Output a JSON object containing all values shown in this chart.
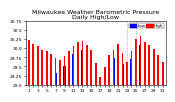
{
  "title": "Milwaukee Weather Barometric Pressure",
  "subtitle": "Daily High/Low",
  "bar_color_high": "#FF0000",
  "bar_color_low": "#0000FF",
  "background_color": "#FFFFFF",
  "ylim": [
    29.0,
    30.75
  ],
  "yticks": [
    29.0,
    29.25,
    29.5,
    29.75,
    30.0,
    30.25,
    30.5,
    30.75
  ],
  "ytick_labels": [
    "29.0",
    "29.25",
    "29.5",
    "29.75",
    "30.0",
    "30.25",
    "30.5",
    "30.75"
  ],
  "x_labels": [
    "1",
    "",
    "3",
    "",
    "5",
    "",
    "7",
    "",
    "9",
    "",
    "11",
    "",
    "13",
    "",
    "15",
    "",
    "17",
    "",
    "19",
    "",
    "21",
    "",
    "23",
    "",
    "25",
    "",
    "27",
    "",
    "29",
    "",
    "31"
  ],
  "highs": [
    30.22,
    30.1,
    30.05,
    29.95,
    29.92,
    29.85,
    29.72,
    29.68,
    29.78,
    29.92,
    30.05,
    30.18,
    30.2,
    30.08,
    29.95,
    29.6,
    29.22,
    29.48,
    29.82,
    29.96,
    30.12,
    29.88,
    29.62,
    29.92,
    30.26,
    30.32,
    30.18,
    30.08,
    29.98,
    29.82,
    29.62
  ],
  "lows": [
    29.95,
    29.82,
    29.74,
    29.68,
    29.6,
    29.48,
    29.32,
    29.24,
    29.52,
    29.7,
    29.84,
    29.92,
    29.94,
    29.78,
    29.6,
    29.12,
    28.92,
    29.18,
    29.58,
    29.74,
    29.9,
    29.58,
    29.32,
    29.7,
    30.02,
    30.08,
    29.88,
    29.8,
    29.72,
    29.52,
    29.22
  ],
  "dotted_lines": [
    22,
    24
  ],
  "title_fontsize": 4.5,
  "tick_fontsize": 3.2,
  "legend_fontsize": 3.0,
  "bar_width": 0.38
}
